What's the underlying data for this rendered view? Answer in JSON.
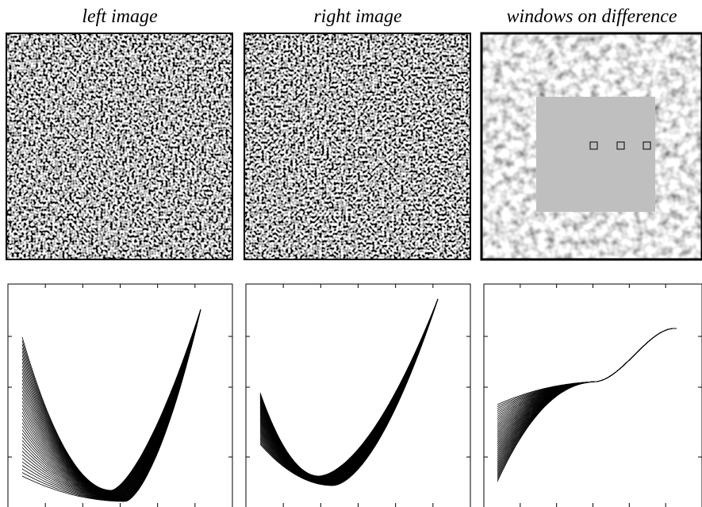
{
  "panels": [
    {
      "title": "left image"
    },
    {
      "title": "right image"
    },
    {
      "title": "windows on difference"
    }
  ]
}
